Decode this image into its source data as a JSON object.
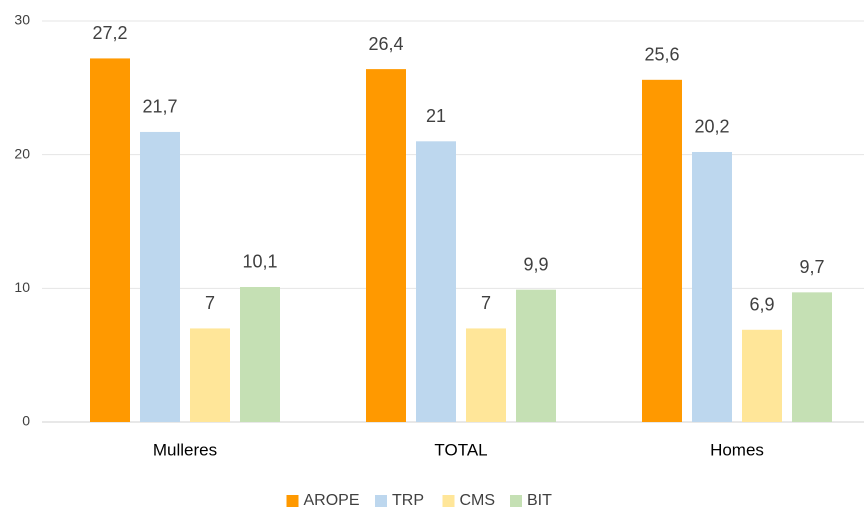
{
  "chart_data": {
    "type": "bar",
    "categories": [
      "Mulleres",
      "TOTAL",
      "Homes"
    ],
    "series": [
      {
        "name": "AROPE",
        "color": "#ff9900",
        "values": [
          27.2,
          26.4,
          25.6
        ],
        "value_labels": [
          "27,2",
          "26,4",
          "25,6"
        ]
      },
      {
        "name": "TRP",
        "color": "#bdd7ee",
        "values": [
          21.7,
          21,
          20.2
        ],
        "value_labels": [
          "21,7",
          "21",
          "20,2"
        ]
      },
      {
        "name": "CMS",
        "color": "#ffe699",
        "values": [
          7,
          7,
          6.9
        ],
        "value_labels": [
          "7",
          "7",
          "6,9"
        ]
      },
      {
        "name": "BIT",
        "color": "#c5e0b4",
        "values": [
          10.1,
          9.9,
          9.7
        ],
        "value_labels": [
          "10,1",
          "9,9",
          "9,7"
        ]
      }
    ],
    "ylim": [
      0,
      30
    ],
    "yticks": [
      0,
      10,
      20,
      30
    ],
    "grid": true,
    "legend": "bottom"
  }
}
